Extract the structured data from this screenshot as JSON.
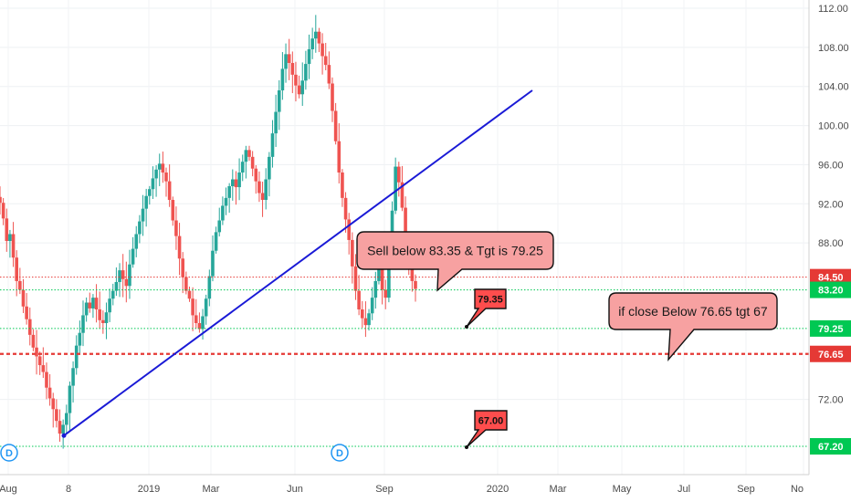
{
  "chart_data": {
    "type": "candlestick",
    "y_axis": {
      "range": [
        64.5,
        113
      ],
      "ticks": [
        "112.00",
        "108.00",
        "104.00",
        "100.00",
        "96.00",
        "92.00",
        "88.00",
        "72.00"
      ],
      "position": "right"
    },
    "x_axis": {
      "ticks": [
        "Aug",
        "8",
        "2019",
        "Mar",
        "Jun",
        "Sep",
        "2020",
        "Mar",
        "May",
        "Jul",
        "Sep",
        "No"
      ]
    },
    "grid": true,
    "price_series": {
      "close": [
        92.1,
        90.5,
        88.2,
        88.9,
        86.5,
        84.1,
        83.2,
        81.5,
        80.2,
        78.6,
        77.3,
        76.4,
        75.5,
        74.8,
        73.2,
        72.1,
        71.0,
        69.8,
        68.5,
        69.4,
        70.6,
        73.4,
        75.2,
        77.5,
        78.8,
        80.6,
        81.9,
        81.3,
        82.4,
        81.2,
        80.1,
        79.8,
        80.9,
        82.3,
        83.1,
        84.0,
        85.2,
        84.3,
        83.6,
        85.8,
        87.4,
        88.9,
        90.2,
        91.5,
        92.8,
        93.5,
        94.6,
        95.5,
        96.1,
        95.2,
        94.3,
        92.4,
        90.3,
        88.7,
        86.4,
        84.5,
        83.1,
        82.3,
        80.6,
        79.8,
        79.2,
        80.5,
        82.3,
        84.6,
        87.2,
        89.1,
        90.3,
        91.8,
        92.6,
        93.8,
        94.5,
        93.7,
        95.2,
        96.3,
        97.5,
        96.8,
        95.6,
        94.3,
        93.1,
        92.4,
        94.5,
        96.8,
        99.2,
        101.4,
        103.6,
        105.8,
        107.3,
        106.4,
        105.2,
        104.1,
        103.2,
        104.6,
        106.3,
        107.8,
        108.9,
        109.6,
        108.4,
        107.1,
        106.2,
        104.3,
        101.5,
        98.4,
        95.2,
        92.6,
        90.4,
        88.3,
        85.6,
        83.1,
        81.2,
        80.3,
        79.6,
        80.8,
        82.4,
        84.1,
        85.3,
        83.2,
        82.4,
        86.5,
        91.3,
        95.8,
        94.2,
        91.6,
        88.3,
        85.4,
        84.1,
        83.3
      ]
    },
    "trendline": {
      "from": {
        "i": 18,
        "v": 68.3
      },
      "to": {
        "i": 163,
        "v": 103.6
      }
    },
    "levels": [
      {
        "value": 84.5,
        "label": "84.50",
        "style": "dotted",
        "color": "#e53935",
        "badge": "#e53935"
      },
      {
        "value": 83.2,
        "label": "83.20",
        "style": "dotted",
        "color": "#00c853",
        "badge": "#00c853"
      },
      {
        "value": 79.25,
        "label": "79.25",
        "style": "dotted",
        "color": "#00c853",
        "badge": "#00c853"
      },
      {
        "value": 76.65,
        "label": "76.65",
        "style": "dashed",
        "color": "#e53935",
        "badge": "#e53935"
      },
      {
        "value": 67.2,
        "label": "67.20",
        "style": "dotted",
        "color": "#00c853",
        "badge": "#00c853"
      }
    ],
    "annotations": [
      {
        "text": "Sell below 83.35 & Tgt is 79.25",
        "type": "callout"
      },
      {
        "text": "if close Below 76.65 tgt 67",
        "type": "callout"
      },
      {
        "text": "79.35",
        "type": "tag"
      },
      {
        "text": "67.00",
        "type": "tag"
      }
    ],
    "dividend_markers": [
      "D",
      "D"
    ]
  },
  "colors": {
    "up": "#26a69a",
    "down": "#ef5350",
    "trendline": "#1a1ad6",
    "callout_fill": "#f7a1a1",
    "tag_fill": "#ff4d4d"
  }
}
